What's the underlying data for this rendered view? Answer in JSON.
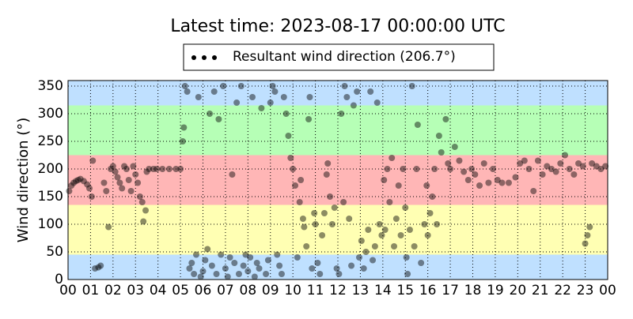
{
  "chart_data": {
    "type": "scatter",
    "title": "Latest time: 2023-08-17 00:00:00 UTC",
    "y_label": "Wind direction (°)",
    "legend": "top",
    "alpha": 0.45,
    "grid": true,
    "xlim": [
      0,
      24
    ],
    "ylim": [
      0,
      360
    ],
    "xticks": [
      {
        "value": 0,
        "label": "00"
      },
      {
        "value": 1,
        "label": "01"
      },
      {
        "value": 2,
        "label": "02"
      },
      {
        "value": 3,
        "label": "03"
      },
      {
        "value": 4,
        "label": "04"
      },
      {
        "value": 5,
        "label": "05"
      },
      {
        "value": 6,
        "label": "06"
      },
      {
        "value": 7,
        "label": "07"
      },
      {
        "value": 8,
        "label": "08"
      },
      {
        "value": 9,
        "label": "09"
      },
      {
        "value": 10,
        "label": "10"
      },
      {
        "value": 11,
        "label": "11"
      },
      {
        "value": 12,
        "label": "12"
      },
      {
        "value": 13,
        "label": "13"
      },
      {
        "value": 14,
        "label": "14"
      },
      {
        "value": 15,
        "label": "15"
      },
      {
        "value": 16,
        "label": "16"
      },
      {
        "value": 17,
        "label": "17"
      },
      {
        "value": 18,
        "label": "18"
      },
      {
        "value": 19,
        "label": "19"
      },
      {
        "value": 20,
        "label": "20"
      },
      {
        "value": 21,
        "label": "21"
      },
      {
        "value": 22,
        "label": "22"
      },
      {
        "value": 23,
        "label": "23"
      },
      {
        "value": 24,
        "label": "00"
      }
    ],
    "yticks": [
      0,
      50,
      100,
      150,
      200,
      250,
      300,
      350
    ],
    "bands": [
      {
        "from": 0,
        "to": 45,
        "color": "#bfe0ff"
      },
      {
        "from": 45,
        "to": 135,
        "color": "#ffffb3"
      },
      {
        "from": 135,
        "to": 225,
        "color": "#ffb6b6"
      },
      {
        "from": 225,
        "to": 315,
        "color": "#b6ffb6"
      },
      {
        "from": 315,
        "to": 360,
        "color": "#bfe0ff"
      }
    ],
    "series": [
      {
        "name": "Resultant wind direction (206.7°)",
        "color": "#000000",
        "x": [
          0.05,
          0.15,
          0.25,
          0.35,
          0.45,
          0.55,
          0.7,
          0.85,
          0.95,
          1.05,
          1.1,
          1.2,
          1.35,
          1.45,
          1.6,
          1.7,
          1.8,
          1.9,
          2.0,
          2.1,
          2.2,
          2.3,
          2.4,
          2.5,
          2.6,
          2.7,
          2.8,
          2.9,
          3.0,
          3.1,
          3.2,
          3.3,
          3.35,
          3.45,
          3.5,
          3.6,
          3.8,
          3.95,
          4.2,
          4.5,
          4.8,
          5.0,
          5.1,
          5.15,
          5.2,
          5.3,
          5.4,
          5.5,
          5.6,
          5.7,
          5.8,
          5.9,
          6.0,
          6.1,
          6.2,
          6.3,
          6.4,
          6.5,
          6.6,
          6.7,
          6.8,
          6.9,
          7.0,
          7.1,
          7.2,
          7.3,
          7.4,
          7.5,
          7.6,
          7.7,
          7.8,
          7.9,
          8.0,
          8.1,
          8.2,
          8.3,
          8.4,
          8.5,
          8.6,
          8.8,
          8.9,
          9.0,
          9.1,
          9.2,
          9.3,
          9.4,
          9.5,
          9.6,
          9.7,
          9.8,
          9.9,
          10.0,
          10.1,
          10.2,
          10.3,
          10.35,
          10.45,
          10.5,
          10.6,
          10.7,
          10.75,
          10.85,
          10.95,
          11.0,
          11.1,
          11.2,
          11.3,
          11.4,
          11.5,
          11.55,
          11.65,
          11.75,
          11.85,
          11.95,
          12.05,
          12.15,
          12.25,
          12.3,
          12.4,
          12.5,
          12.6,
          12.7,
          12.85,
          12.95,
          13.05,
          13.15,
          13.25,
          13.35,
          13.45,
          13.55,
          13.65,
          13.75,
          13.85,
          13.95,
          14.05,
          14.1,
          14.2,
          14.3,
          14.4,
          14.5,
          14.6,
          14.7,
          14.8,
          14.9,
          15.0,
          15.05,
          15.1,
          15.2,
          15.3,
          15.4,
          15.5,
          15.55,
          15.7,
          15.85,
          15.95,
          16.0,
          16.1,
          16.2,
          16.3,
          16.4,
          16.5,
          16.6,
          16.8,
          16.9,
          17.0,
          17.2,
          17.4,
          17.6,
          17.8,
          17.95,
          18.1,
          18.3,
          18.5,
          18.7,
          18.9,
          19.1,
          19.3,
          19.6,
          19.9,
          20.1,
          20.3,
          20.5,
          20.7,
          20.9,
          21.1,
          21.3,
          21.5,
          21.7,
          21.9,
          22.1,
          22.3,
          22.5,
          22.7,
          22.9,
          23.0,
          23.1,
          23.2,
          23.3,
          23.5,
          23.7,
          23.9
        ],
        "values": [
          160,
          170,
          175,
          178,
          180,
          182,
          178,
          172,
          165,
          150,
          215,
          20,
          22,
          25,
          175,
          160,
          95,
          200,
          205,
          195,
          185,
          175,
          165,
          205,
          200,
          180,
          160,
          205,
          190,
          175,
          150,
          140,
          105,
          125,
          195,
          200,
          200,
          200,
          200,
          200,
          200,
          200,
          250,
          275,
          350,
          340,
          20,
          30,
          10,
          45,
          330,
          5,
          15,
          35,
          55,
          300,
          25,
          340,
          10,
          290,
          45,
          350,
          20,
          5,
          40,
          190,
          30,
          320,
          10,
          350,
          25,
          45,
          15,
          40,
          330,
          5,
          30,
          20,
          310,
          10,
          35,
          320,
          350,
          340,
          45,
          25,
          10,
          330,
          300,
          260,
          220,
          200,
          170,
          40,
          140,
          180,
          110,
          95,
          60,
          290,
          330,
          20,
          120,
          100,
          30,
          10,
          80,
          120,
          190,
          210,
          150,
          100,
          130,
          20,
          10,
          300,
          140,
          350,
          330,
          110,
          25,
          315,
          340,
          40,
          70,
          20,
          50,
          90,
          340,
          35,
          60,
          320,
          100,
          80,
          180,
          90,
          200,
          140,
          220,
          60,
          110,
          170,
          80,
          200,
          130,
          40,
          10,
          90,
          350,
          60,
          200,
          280,
          30,
          100,
          170,
          80,
          120,
          150,
          200,
          100,
          260,
          230,
          290,
          210,
          200,
          240,
          215,
          195,
          180,
          200,
          190,
          170,
          210,
          175,
          200,
          180,
          175,
          175,
          185,
          210,
          215,
          200,
          160,
          215,
          190,
          205,
          200,
          195,
          210,
          225,
          200,
          190,
          210,
          205,
          65,
          80,
          95,
          210,
          205,
          200,
          205
        ]
      }
    ]
  }
}
